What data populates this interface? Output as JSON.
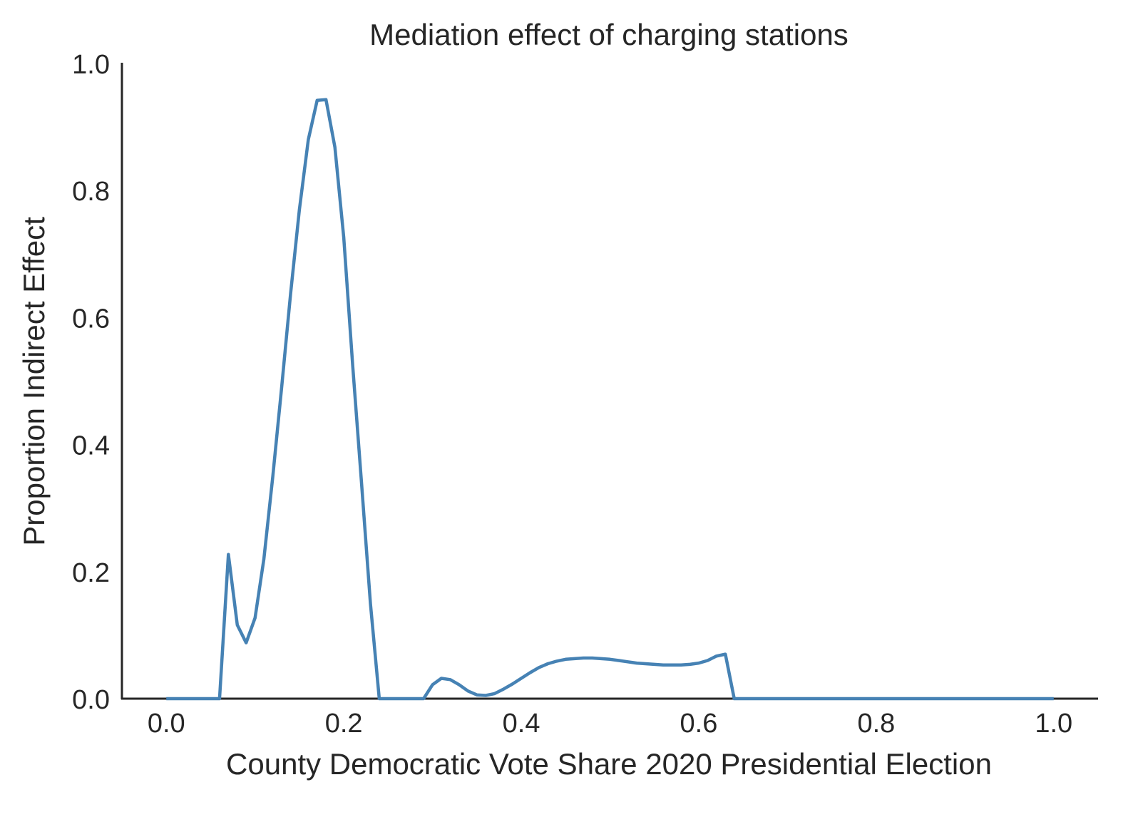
{
  "chart_data": {
    "type": "line",
    "title": "Mediation effect of charging stations",
    "xlabel": "County Democratic Vote Share 2020 Presidential Election",
    "ylabel": "Proportion Indirect Effect",
    "xlim": [
      -0.05,
      1.05
    ],
    "ylim": [
      0.0,
      1.0
    ],
    "xticks": [
      "0.0",
      "0.2",
      "0.4",
      "0.6",
      "0.8",
      "1.0"
    ],
    "yticks": [
      "0.0",
      "0.2",
      "0.4",
      "0.6",
      "0.8",
      "1.0"
    ],
    "grid": false,
    "line_color": "#4682b4",
    "series": [
      {
        "x": [
          0.0,
          0.02,
          0.04,
          0.06,
          0.07,
          0.08,
          0.09,
          0.1,
          0.11,
          0.12,
          0.13,
          0.14,
          0.15,
          0.16,
          0.17,
          0.18,
          0.19,
          0.2,
          0.21,
          0.22,
          0.23,
          0.24,
          0.25,
          0.27,
          0.29,
          0.3,
          0.31,
          0.32,
          0.33,
          0.34,
          0.35,
          0.36,
          0.37,
          0.38,
          0.39,
          0.4,
          0.41,
          0.42,
          0.43,
          0.44,
          0.45,
          0.46,
          0.47,
          0.48,
          0.49,
          0.5,
          0.51,
          0.52,
          0.53,
          0.54,
          0.55,
          0.56,
          0.57,
          0.58,
          0.59,
          0.6,
          0.61,
          0.62,
          0.63,
          0.64,
          0.7,
          0.8,
          0.9,
          1.0
        ],
        "y": [
          0.0,
          0.0,
          0.0,
          0.0,
          0.227,
          0.116,
          0.088,
          0.127,
          0.22,
          0.35,
          0.49,
          0.637,
          0.77,
          0.88,
          0.942,
          0.943,
          0.868,
          0.726,
          0.525,
          0.34,
          0.15,
          0.0,
          0.0,
          0.0,
          0.0,
          0.022,
          0.032,
          0.03,
          0.022,
          0.012,
          0.006,
          0.005,
          0.008,
          0.015,
          0.023,
          0.032,
          0.041,
          0.049,
          0.055,
          0.059,
          0.062,
          0.063,
          0.064,
          0.064,
          0.063,
          0.062,
          0.06,
          0.058,
          0.056,
          0.055,
          0.054,
          0.053,
          0.053,
          0.053,
          0.054,
          0.056,
          0.06,
          0.067,
          0.07,
          0.0,
          0.0,
          0.0,
          0.0,
          0.0
        ]
      }
    ]
  }
}
